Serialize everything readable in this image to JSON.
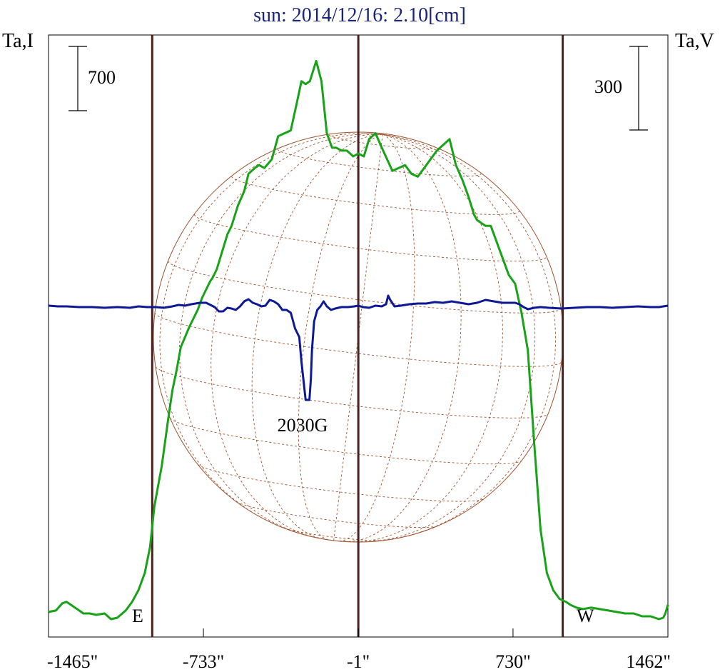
{
  "chart_data": {
    "type": "line",
    "title": "sun: 2014/12/16: 2.10[cm]",
    "left_axis_label": "Ta,I",
    "right_axis_label": "Ta,V",
    "scale_bar_left": "700",
    "scale_bar_right": "300",
    "x_ticks": [
      {
        "value": -1465,
        "label": "-1465\""
      },
      {
        "value": -733,
        "label": "-733\""
      },
      {
        "value": -1,
        "label": "-1\""
      },
      {
        "value": 730,
        "label": "730\""
      },
      {
        "value": 1462,
        "label": "1462\""
      }
    ],
    "xlim": [
      -1465,
      1462
    ],
    "vertical_lines": [
      -975,
      -1,
      965
    ],
    "limb_markers": {
      "east": "E",
      "west": "W"
    },
    "annotation": "2030G",
    "colors": {
      "title": "#1a237e",
      "intensity": "#17a217",
      "polarization": "#0d1896",
      "grid": "#a0522d",
      "markers": "#4a2020"
    },
    "series": [
      {
        "key": "intensity",
        "x": [
          -1465,
          -1430,
          -1400,
          -1380,
          -1340,
          -1300,
          -1270,
          -1240,
          -1200,
          -1170,
          -1140,
          -1100,
          -1070,
          -1040,
          -1010,
          -985,
          -965,
          -930,
          -900,
          -880,
          -860,
          -840,
          -800,
          -760,
          -740,
          -720,
          -700,
          -690,
          -670,
          -645,
          -620,
          -600,
          -570,
          -540,
          -520,
          -490,
          -470,
          -445,
          -410,
          -380,
          -350,
          -320,
          -290,
          -270,
          -250,
          -230,
          -200,
          -175,
          -150,
          -125,
          -105,
          -80,
          -55,
          -25,
          -1,
          25,
          50,
          80,
          110,
          135,
          160,
          190,
          220,
          250,
          280,
          310,
          340,
          370,
          400,
          430,
          460,
          490,
          520,
          545,
          560,
          580,
          600,
          625,
          650,
          680,
          710,
          740,
          770,
          800,
          830,
          860,
          890,
          920,
          950,
          980,
          1000,
          1030,
          1060,
          1100,
          1140,
          1180,
          1220,
          1260,
          1300,
          1340,
          1380,
          1420,
          1440,
          1450,
          1462
        ],
        "y": [
          0.015,
          0.02,
          0.045,
          0.05,
          0.03,
          0.01,
          0.01,
          0.005,
          0.01,
          -0.01,
          -0.005,
          0.02,
          0.05,
          0.09,
          0.15,
          0.24,
          0.38,
          0.52,
          0.68,
          0.78,
          0.85,
          0.93,
          1.0,
          1.06,
          1.1,
          1.13,
          1.16,
          1.17,
          1.2,
          1.26,
          1.32,
          1.35,
          1.42,
          1.47,
          1.53,
          1.55,
          1.56,
          1.55,
          1.58,
          1.66,
          1.67,
          1.68,
          1.78,
          1.85,
          1.84,
          1.85,
          1.92,
          1.85,
          1.67,
          1.62,
          1.62,
          1.61,
          1.61,
          1.59,
          1.6,
          1.59,
          1.65,
          1.67,
          1.62,
          1.58,
          1.54,
          1.55,
          1.56,
          1.53,
          1.52,
          1.55,
          1.58,
          1.61,
          1.63,
          1.65,
          1.56,
          1.51,
          1.45,
          1.39,
          1.37,
          1.36,
          1.35,
          1.35,
          1.3,
          1.24,
          1.18,
          1.15,
          1.05,
          0.92,
          0.6,
          0.3,
          0.15,
          0.09,
          0.06,
          0.05,
          0.04,
          0.03,
          0.025,
          0.03,
          0.025,
          0.02,
          0.015,
          0.01,
          0.01,
          0.0,
          0.0,
          -0.01,
          -0.005,
          0.01,
          0.04
        ]
      },
      {
        "key": "polarization",
        "x": [
          -1465,
          -1420,
          -1380,
          -1320,
          -1260,
          -1200,
          -1140,
          -1080,
          -1040,
          -1000,
          -960,
          -920,
          -880,
          -850,
          -820,
          -790,
          -770,
          -750,
          -720,
          -700,
          -680,
          -660,
          -640,
          -620,
          -600,
          -580,
          -560,
          -540,
          -520,
          -500,
          -480,
          -460,
          -440,
          -420,
          -400,
          -380,
          -360,
          -340,
          -320,
          -300,
          -280,
          -270,
          -250,
          -232,
          -225,
          -220,
          -210,
          -195,
          -180,
          -165,
          -150,
          -130,
          -110,
          -80,
          -50,
          -20,
          -1,
          20,
          50,
          80,
          110,
          130,
          140,
          150,
          170,
          200,
          240,
          280,
          320,
          360,
          400,
          440,
          480,
          520,
          560,
          600,
          640,
          680,
          720,
          740,
          760,
          780,
          800,
          830,
          860,
          900,
          960,
          1020,
          1080,
          1140,
          1200,
          1260,
          1320,
          1380,
          1420,
          1462
        ],
        "y": [
          0.01,
          0.005,
          0.005,
          0.0,
          0.0,
          -0.005,
          0.0,
          -0.005,
          0.005,
          0.0,
          0.0,
          -0.005,
          0.005,
          0.015,
          0.01,
          0.02,
          0.025,
          0.03,
          0.03,
          0.015,
          0.0,
          -0.03,
          -0.03,
          -0.005,
          -0.01,
          -0.02,
          0.005,
          0.04,
          0.055,
          0.03,
          0.02,
          0.005,
          0.01,
          0.05,
          0.04,
          0.02,
          -0.02,
          -0.02,
          -0.04,
          -0.15,
          -0.21,
          -0.38,
          -0.65,
          -0.65,
          -0.5,
          -0.3,
          -0.1,
          -0.02,
          0.005,
          0.04,
          0.005,
          -0.02,
          -0.01,
          0.0,
          0.0,
          0.005,
          0.01,
          0.0,
          -0.005,
          0.01,
          0.005,
          0.02,
          0.08,
          0.05,
          0.005,
          0.01,
          0.02,
          0.025,
          0.025,
          0.035,
          0.03,
          0.04,
          0.03,
          0.02,
          0.03,
          0.05,
          0.04,
          0.03,
          0.03,
          0.03,
          0.02,
          0.0,
          -0.015,
          -0.005,
          0.0,
          -0.005,
          -0.01,
          -0.005,
          0.0,
          0.0,
          -0.005,
          0.0,
          0.005,
          0.0,
          0.0,
          0.01
        ]
      }
    ]
  }
}
